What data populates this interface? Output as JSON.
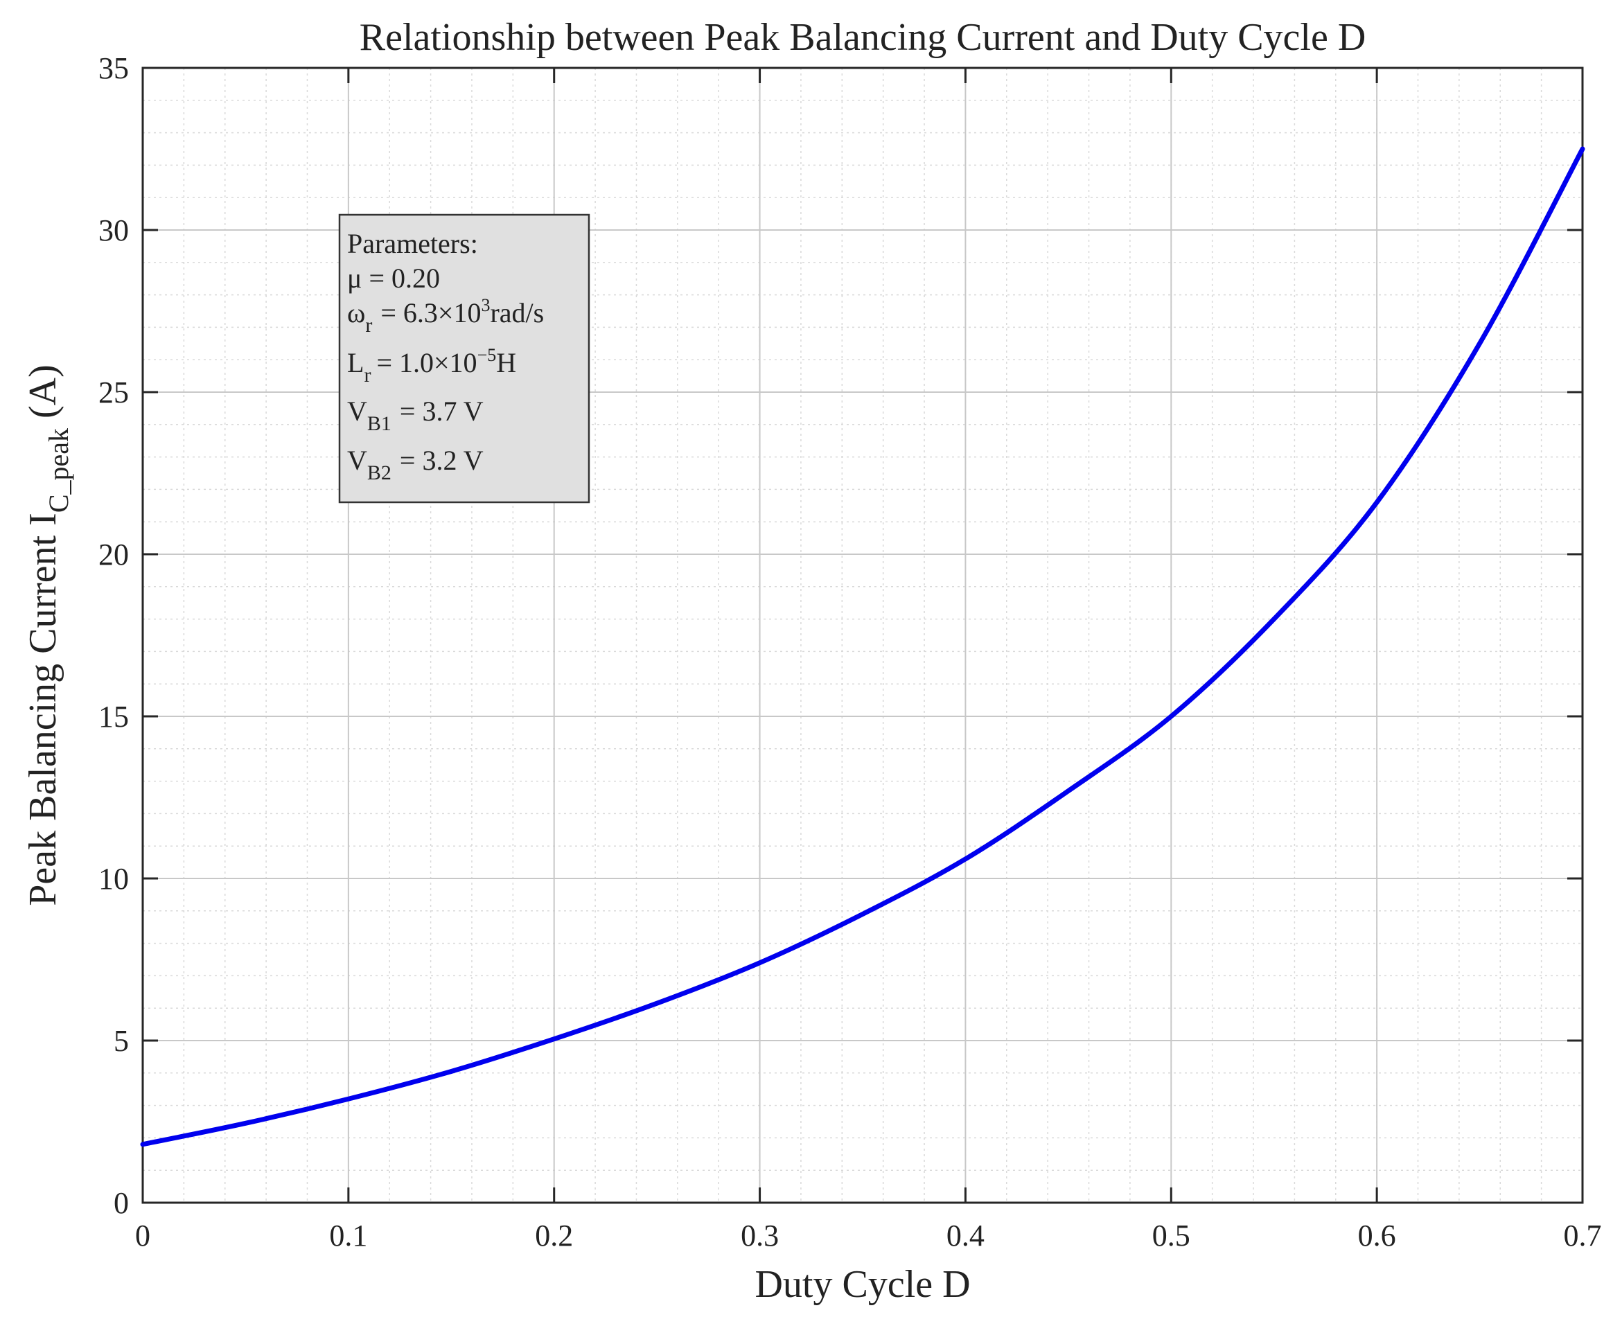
{
  "chart_data": {
    "type": "line",
    "title": "Relationship between Peak Balancing Current and Duty Cycle D",
    "xlabel": "Duty Cycle D",
    "ylabel": {
      "main": "Peak Balancing Current I",
      "sub": "C_peak",
      "unit": "(A)"
    },
    "xlim": [
      0,
      0.7
    ],
    "ylim": [
      0,
      35
    ],
    "xticks": [
      0,
      0.1,
      0.2,
      0.3,
      0.4,
      0.5,
      0.6,
      0.7
    ],
    "xtick_labels": [
      "0",
      "0.1",
      "0.2",
      "0.3",
      "0.4",
      "0.5",
      "0.6",
      "0.7"
    ],
    "yticks": [
      0,
      5,
      10,
      15,
      20,
      25,
      30,
      35
    ],
    "ytick_labels": [
      "0",
      "5",
      "10",
      "15",
      "20",
      "25",
      "30",
      "35"
    ],
    "grid": true,
    "minor_grid": true,
    "series": [
      {
        "color": "#0000ee",
        "x": [
          0,
          0.05,
          0.1,
          0.15,
          0.2,
          0.25,
          0.3,
          0.35,
          0.4,
          0.45,
          0.5,
          0.55,
          0.6,
          0.65,
          0.7
        ],
        "y": [
          1.8,
          2.45,
          3.2,
          4.05,
          5.05,
          6.15,
          7.4,
          8.9,
          10.6,
          12.7,
          15.0,
          18.0,
          21.6,
          26.5,
          32.5
        ]
      }
    ],
    "annotation": {
      "heading": "Parameters:",
      "lines": [
        {
          "main": "μ = 0.20"
        },
        {
          "sym": "ω",
          "sub": "r",
          "text": "= 6.3×10",
          "sup": "3",
          "tail": "rad/s"
        },
        {
          "sym": "L",
          "sub": "r",
          "text": "=  1.0×10",
          "sup": "−5",
          "tail": "H"
        },
        {
          "sym": "V",
          "sub": "B1",
          "text": "= 3.7 V"
        },
        {
          "sym": "V",
          "sub": "B2",
          "text": "= 3.2 V"
        }
      ]
    }
  }
}
